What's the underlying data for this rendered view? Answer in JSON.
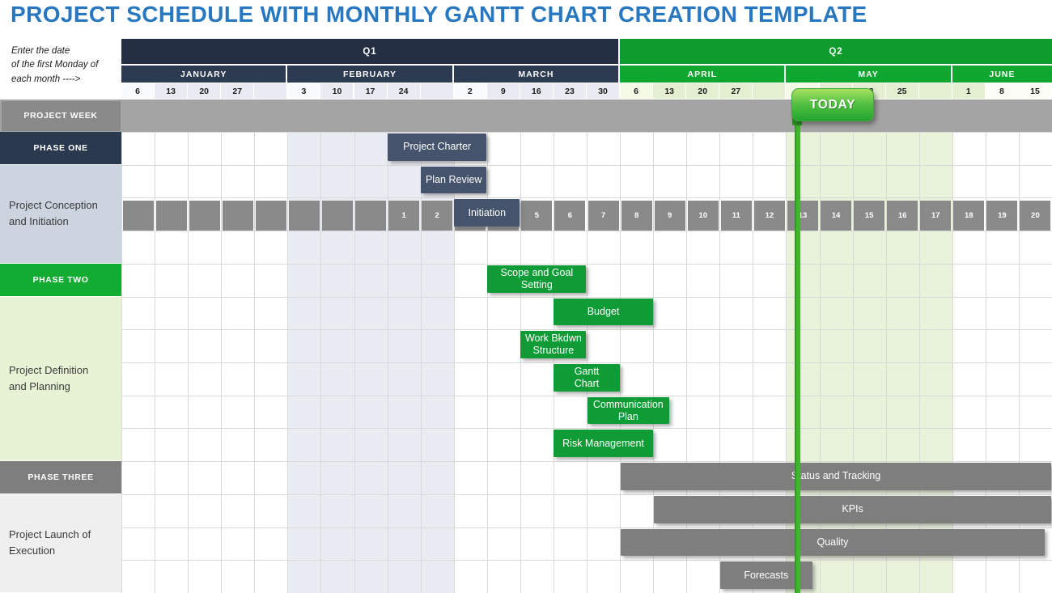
{
  "page": {
    "title": "PROJECT SCHEDULE WITH MONTHLY GANTT CHART CREATION TEMPLATE",
    "title_color": "#2878c1"
  },
  "hint": {
    "text": "Enter the date\nof the first Monday of\neach month ---->"
  },
  "header": {
    "quarters": [
      {
        "label": "Q1",
        "start_col": 0,
        "end_col": 15,
        "color": "#242f43"
      },
      {
        "label": "Q2",
        "start_col": 15,
        "end_col": 28,
        "color": "#0d9c2c"
      }
    ],
    "months": [
      {
        "label": "JANUARY",
        "start_col": 0,
        "end_col": 5,
        "color": "#2d3b52"
      },
      {
        "label": "FEBRUARY",
        "start_col": 5,
        "end_col": 10,
        "color": "#2d3b52"
      },
      {
        "label": "MARCH",
        "start_col": 10,
        "end_col": 15,
        "color": "#2d3b52"
      },
      {
        "label": "APRIL",
        "start_col": 15,
        "end_col": 20,
        "color": "#0fa72f"
      },
      {
        "label": "MAY",
        "start_col": 20,
        "end_col": 25,
        "color": "#0fa72f"
      },
      {
        "label": "JUNE",
        "start_col": 25,
        "end_col": 28,
        "color": "#0fa72f"
      }
    ],
    "date_colors": {
      "q1first": "#fafbfd",
      "q1": "#e8ecf2",
      "q2first": "#f4fae6",
      "q2": "#e4efd2",
      "q2light": "#fbfdf6"
    },
    "dates": [
      {
        "label": "6",
        "variant": "q1first"
      },
      {
        "label": "13",
        "variant": "q1"
      },
      {
        "label": "20",
        "variant": "q1"
      },
      {
        "label": "27",
        "variant": "q1"
      },
      {
        "label": "",
        "variant": "q1"
      },
      {
        "label": "3",
        "variant": "q1first"
      },
      {
        "label": "10",
        "variant": "q1"
      },
      {
        "label": "17",
        "variant": "q1"
      },
      {
        "label": "24",
        "variant": "q1"
      },
      {
        "label": "",
        "variant": "q1"
      },
      {
        "label": "2",
        "variant": "q1first"
      },
      {
        "label": "9",
        "variant": "q1"
      },
      {
        "label": "16",
        "variant": "q1"
      },
      {
        "label": "23",
        "variant": "q1"
      },
      {
        "label": "30",
        "variant": "q1"
      },
      {
        "label": "6",
        "variant": "q2first"
      },
      {
        "label": "13",
        "variant": "q2"
      },
      {
        "label": "20",
        "variant": "q2"
      },
      {
        "label": "27",
        "variant": "q2"
      },
      {
        "label": "",
        "variant": "q2"
      },
      {
        "label": "4",
        "variant": "q2first"
      },
      {
        "label": "11",
        "variant": "q2"
      },
      {
        "label": "18",
        "variant": "q2"
      },
      {
        "label": "25",
        "variant": "q2"
      },
      {
        "label": "",
        "variant": "q2"
      },
      {
        "label": "1",
        "variant": "q2"
      },
      {
        "label": "8",
        "variant": "q2light"
      },
      {
        "label": "15",
        "variant": "q2light"
      }
    ]
  },
  "week_row": {
    "label": "PROJECT WEEK",
    "numbers": [
      "",
      "",
      "",
      "",
      "",
      "",
      "",
      "",
      "1",
      "2",
      "3",
      "4",
      "5",
      "6",
      "7",
      "8",
      "9",
      "10",
      "11",
      "12",
      "13",
      "14",
      "15",
      "16",
      "17",
      "18",
      "19",
      "20"
    ]
  },
  "phases": [
    {
      "kind": "phase",
      "label": "PHASE ONE",
      "row": 0,
      "span": 1,
      "bg": "#2b394e",
      "fg": "#ffffff"
    },
    {
      "kind": "group",
      "label": "Project Conception\nand Initiation",
      "row": 1,
      "span": 3,
      "bg": "#ccd4df",
      "fg": "#3a3a3a"
    },
    {
      "kind": "phase",
      "label": "PHASE TWO",
      "row": 4,
      "span": 1,
      "bg": "#12ac33",
      "fg": "#ffffff"
    },
    {
      "kind": "group",
      "label": "Project Definition\nand Planning",
      "row": 5,
      "span": 5,
      "bg": "#e8f3d5",
      "fg": "#3a3a3a"
    },
    {
      "kind": "phase",
      "label": "PHASE THREE",
      "row": 10,
      "span": 1,
      "bg": "#7e7e7e",
      "fg": "#ffffff"
    },
    {
      "kind": "group",
      "label": "Project Launch of\nExecution",
      "row": 11,
      "span": 3,
      "bg": "#efefef",
      "fg": "#3a3a3a"
    }
  ],
  "palette": {
    "navy": "#45546c",
    "green": "#0f9b35",
    "gray": "#7e7e7e"
  },
  "body": {
    "grid_color": "#d9d9d9",
    "shaded_ranges": [
      {
        "start_col": 5,
        "end_col": 10,
        "color": "#e9ecf2"
      },
      {
        "start_col": 20,
        "end_col": 25,
        "color": "#e9f3da"
      }
    ]
  },
  "bars": [
    {
      "label": "Project Charter",
      "row": 0,
      "start_col": 8,
      "end_col": 11,
      "palette": "navy"
    },
    {
      "label": "Plan Review",
      "row": 1,
      "start_col": 9,
      "end_col": 11,
      "palette": "navy"
    },
    {
      "label": "Initiation",
      "row": 2,
      "start_col": 10,
      "end_col": 12,
      "palette": "navy"
    },
    {
      "label": "Scope and Goal\nSetting",
      "row": 4,
      "start_col": 11,
      "end_col": 14,
      "palette": "green"
    },
    {
      "label": "Budget",
      "row": 5,
      "start_col": 13,
      "end_col": 16,
      "palette": "green"
    },
    {
      "label": "Work Bkdwn\nStructure",
      "row": 6,
      "start_col": 12,
      "end_col": 14,
      "palette": "green"
    },
    {
      "label": "Gantt\nChart",
      "row": 7,
      "start_col": 13,
      "end_col": 15,
      "palette": "green"
    },
    {
      "label": "Communication\nPlan",
      "row": 8,
      "start_col": 14,
      "end_col": 16.5,
      "palette": "green"
    },
    {
      "label": "Risk Management",
      "row": 9,
      "start_col": 13,
      "end_col": 16,
      "palette": "green"
    },
    {
      "label": "Status and Tracking",
      "row": 10,
      "start_col": 15,
      "end_col": 28,
      "palette": "gray"
    },
    {
      "label": "KPIs",
      "row": 11,
      "start_col": 16,
      "end_col": 28,
      "palette": "gray"
    },
    {
      "label": "Quality",
      "row": 12,
      "start_col": 15,
      "end_col": 27.8,
      "palette": "gray"
    },
    {
      "label": "Forecasts",
      "row": 13,
      "start_col": 18,
      "end_col": 20.8,
      "palette": "gray"
    }
  ],
  "today": {
    "label": "TODAY",
    "line_color": "#41b52d",
    "badge_top_color": "#a9e163",
    "badge_bottom_color": "#21a52e"
  },
  "chart_data": {
    "type": "bar",
    "subtype": "gantt",
    "title": "PROJECT SCHEDULE WITH MONTHLY GANTT CHART CREATION TEMPLATE",
    "x_axis": {
      "quarters": [
        "Q1",
        "Q2"
      ],
      "months": [
        "JANUARY",
        "FEBRUARY",
        "MARCH",
        "APRIL",
        "MAY",
        "JUNE"
      ],
      "monday_dates": {
        "JANUARY": [
          6,
          13,
          20,
          27
        ],
        "FEBRUARY": [
          3,
          10,
          17,
          24
        ],
        "MARCH": [
          2,
          9,
          16,
          23,
          30
        ],
        "APRIL": [
          6,
          13,
          20,
          27
        ],
        "MAY": [
          4,
          11,
          18,
          25
        ],
        "JUNE": [
          1,
          8,
          15
        ]
      },
      "project_weeks": [
        1,
        2,
        3,
        4,
        5,
        6,
        7,
        8,
        9,
        10,
        11,
        12,
        13,
        14,
        15,
        16,
        17,
        18,
        19,
        20
      ],
      "week_1_starts": "FEBRUARY 24"
    },
    "today_marker": {
      "label": "TODAY",
      "at_week": 13,
      "near_date": "MAY 4"
    },
    "series": [
      {
        "phase": "PHASE ONE",
        "group": "Project Conception and Initiation",
        "task": "Project Charter",
        "start_week": 1,
        "end_week": 3
      },
      {
        "phase": "PHASE ONE",
        "group": "Project Conception and Initiation",
        "task": "Plan Review",
        "start_week": 2,
        "end_week": 3
      },
      {
        "phase": "PHASE ONE",
        "group": "Project Conception and Initiation",
        "task": "Initiation",
        "start_week": 3,
        "end_week": 4
      },
      {
        "phase": "PHASE TWO",
        "group": "Project Definition and Planning",
        "task": "Scope and Goal Setting",
        "start_week": 4,
        "end_week": 6
      },
      {
        "phase": "PHASE TWO",
        "group": "Project Definition and Planning",
        "task": "Budget",
        "start_week": 6,
        "end_week": 8
      },
      {
        "phase": "PHASE TWO",
        "group": "Project Definition and Planning",
        "task": "Work Bkdwn Structure",
        "start_week": 5,
        "end_week": 6
      },
      {
        "phase": "PHASE TWO",
        "group": "Project Definition and Planning",
        "task": "Gantt Chart",
        "start_week": 6,
        "end_week": 7
      },
      {
        "phase": "PHASE TWO",
        "group": "Project Definition and Planning",
        "task": "Communication Plan",
        "start_week": 7,
        "end_week": 9
      },
      {
        "phase": "PHASE TWO",
        "group": "Project Definition and Planning",
        "task": "Risk Management",
        "start_week": 6,
        "end_week": 8
      },
      {
        "phase": "PHASE THREE",
        "group": "Project Launch of Execution",
        "task": "Status and Tracking",
        "start_week": 8,
        "end_week": 20
      },
      {
        "phase": "PHASE THREE",
        "group": "Project Launch of Execution",
        "task": "KPIs",
        "start_week": 9,
        "end_week": 20
      },
      {
        "phase": "PHASE THREE",
        "group": "Project Launch of Execution",
        "task": "Quality",
        "start_week": 8,
        "end_week": 20
      },
      {
        "phase": "PHASE THREE",
        "group": "Project Launch of Execution",
        "task": "Forecasts",
        "start_week": 11,
        "end_week": 13
      }
    ]
  }
}
